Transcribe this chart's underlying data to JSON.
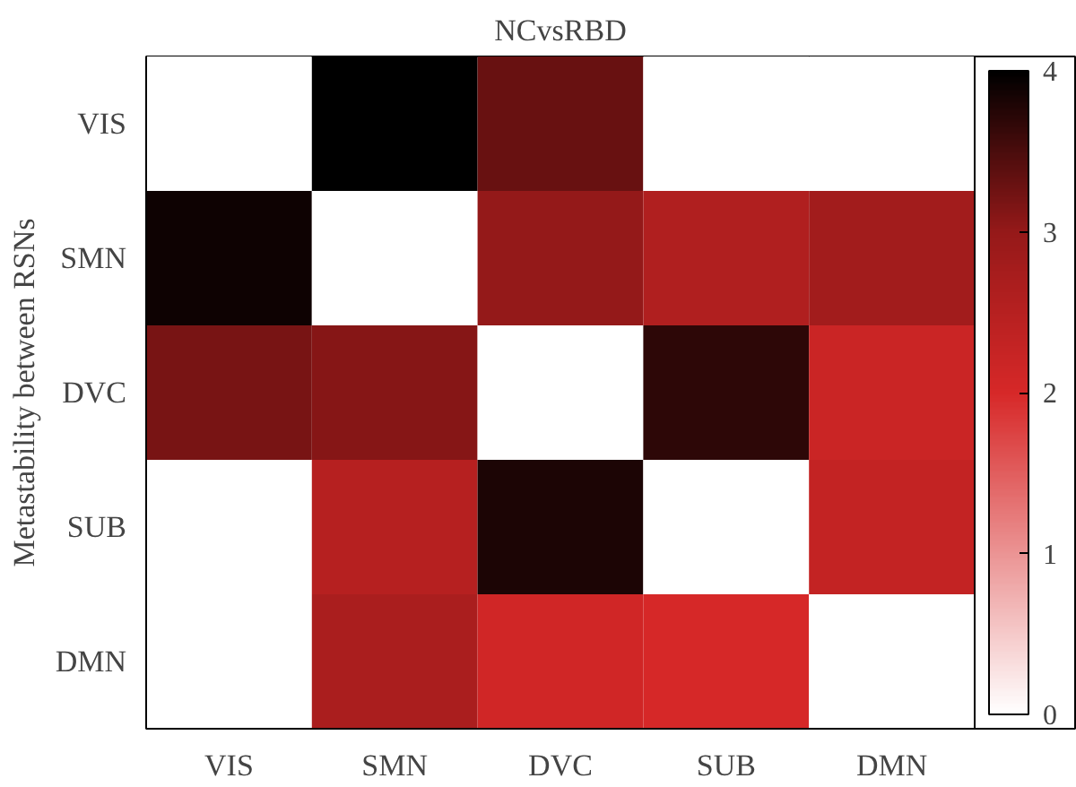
{
  "chart_data": {
    "type": "heatmap",
    "title": "NCvsRBD",
    "ylabel": "Metastability between RSNs",
    "categories": [
      "VIS",
      "SMN",
      "DVC",
      "SUB",
      "DMN"
    ],
    "y_categories": [
      "VIS",
      "SMN",
      "DVC",
      "SUB",
      "DMN"
    ],
    "cells": [
      [
        0,
        4.0,
        3.3,
        0,
        0
      ],
      [
        3.9,
        0,
        3.0,
        2.6,
        2.8
      ],
      [
        3.2,
        3.1,
        0,
        3.7,
        2.2
      ],
      [
        0,
        2.5,
        3.8,
        0,
        2.3
      ],
      [
        0,
        2.7,
        2.1,
        2.0,
        0
      ]
    ],
    "clim": [
      0,
      4
    ],
    "cticks": [
      0,
      1,
      2,
      3,
      4
    ]
  }
}
